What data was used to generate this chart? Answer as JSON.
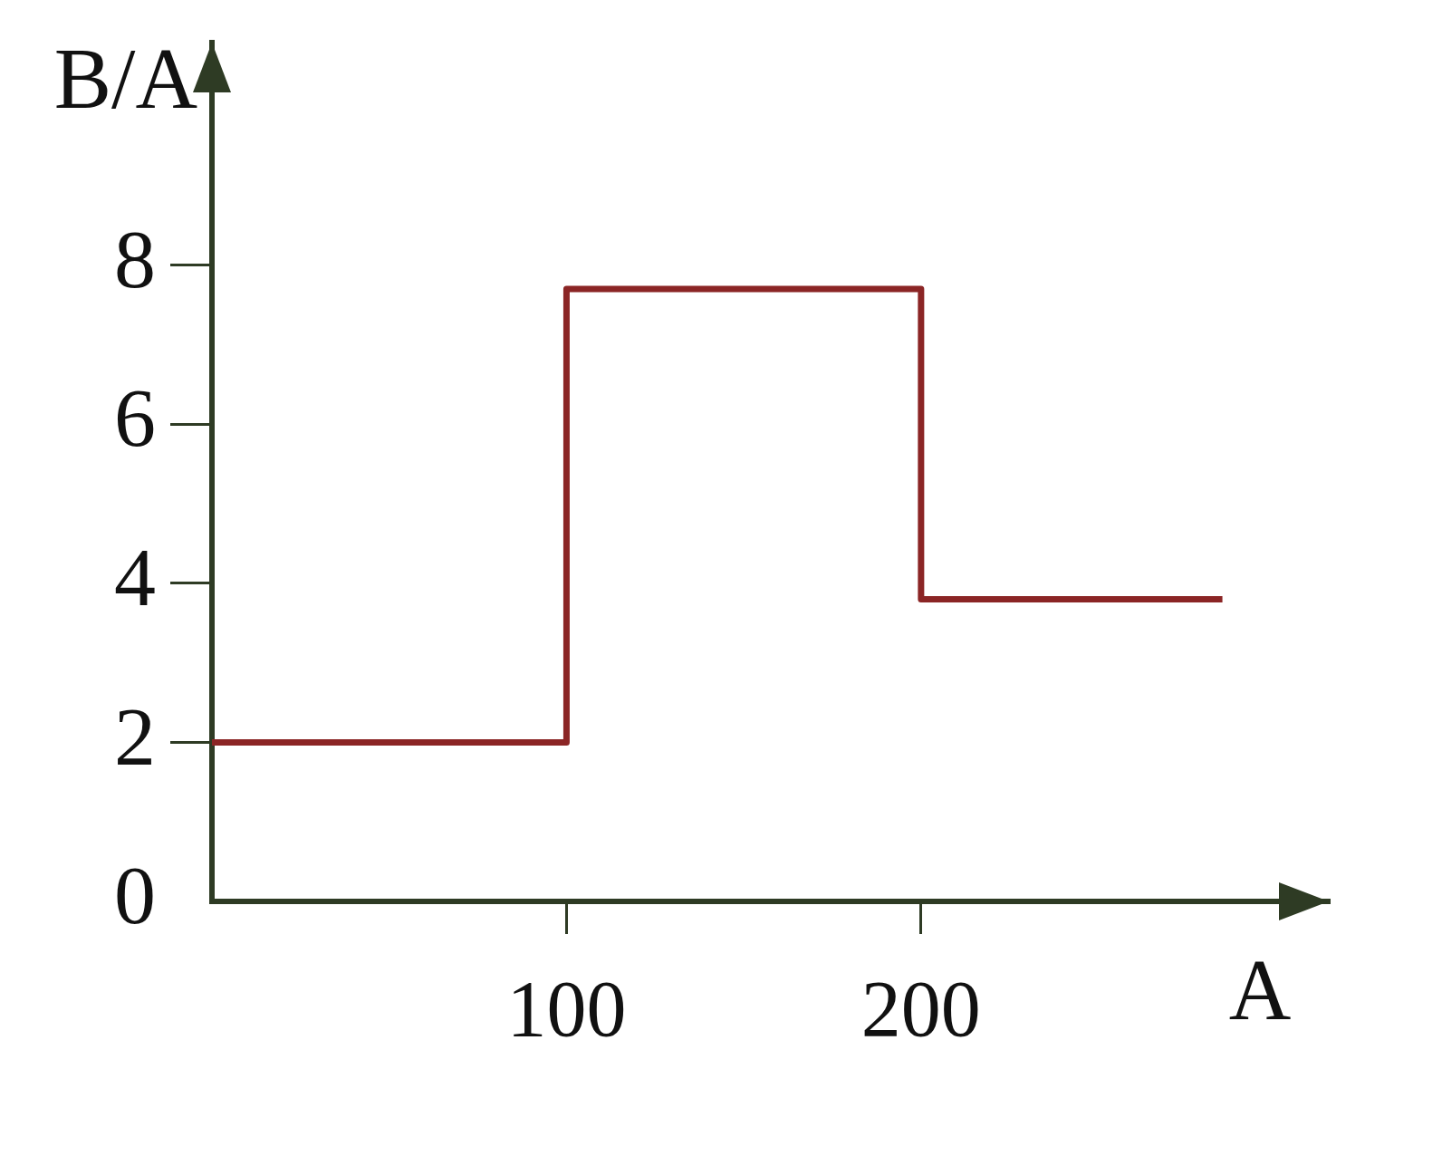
{
  "chart_data": {
    "type": "step",
    "xlabel": "A",
    "ylabel": "B/A",
    "x": [
      0,
      100,
      200,
      285
    ],
    "values": [
      2,
      7.7,
      3.8,
      3.8
    ],
    "color": "#8b2525",
    "xlim": [
      0,
      315
    ],
    "ylim": [
      0,
      10.8
    ],
    "xticks": [
      100,
      200
    ],
    "yticks": [
      0,
      2,
      4,
      6,
      8
    ],
    "marker": "none"
  }
}
